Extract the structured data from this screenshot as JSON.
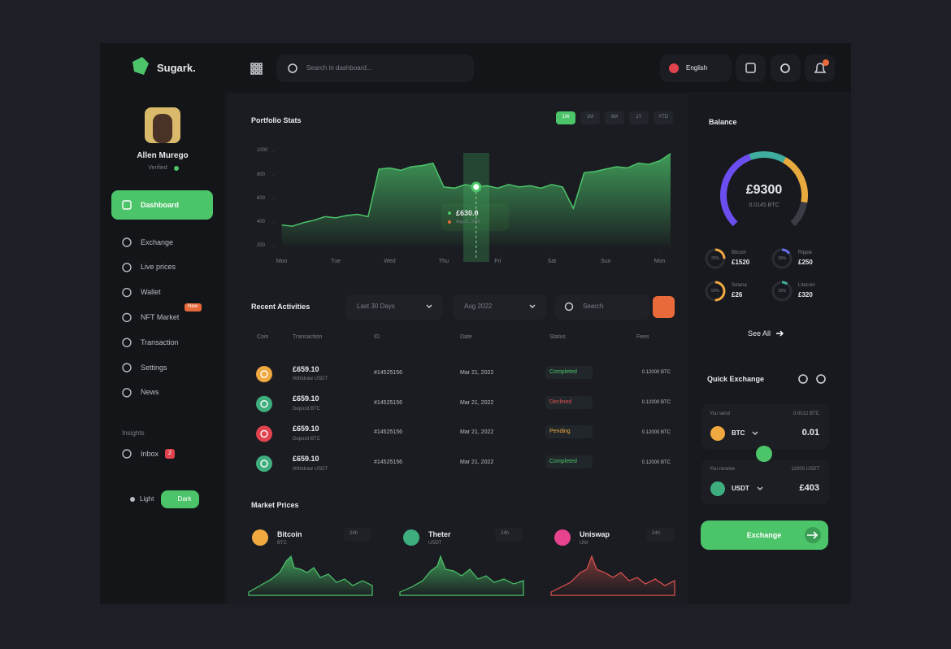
{
  "topbar": {
    "brand": "Sugark.",
    "search_placeholder": "Search in dashboard...",
    "language": "English"
  },
  "profile": {
    "name": "Allen Murego",
    "status": "Verified"
  },
  "sidebar": {
    "active": "Dashboard",
    "items": [
      "Exchange",
      "Live prices",
      "Wallet",
      "NFT Market",
      "Transaction",
      "Settings",
      "News"
    ],
    "badge": "New",
    "section": "Insights",
    "inbox": "Inbox",
    "inbox_count": "2",
    "theme_light": "Light",
    "theme_dark": "Dark"
  },
  "portfolio": {
    "title": "Portfolio Stats",
    "ranges": [
      "1W",
      "1M",
      "6M",
      "1Y",
      "YTD"
    ],
    "chart": {
      "type": "area",
      "color": "#4cc46a",
      "x": [
        0,
        0.2,
        0.4,
        0.6,
        0.8,
        1,
        1.2,
        1.4,
        1.6,
        1.8,
        2,
        2.2,
        2.4,
        2.6,
        2.8,
        3,
        3.2,
        3.4,
        3.6,
        3.8,
        4,
        4.2,
        4.4,
        4.6,
        4.8,
        5,
        5.2,
        5.4,
        5.6,
        5.8,
        6,
        6.2,
        6.4,
        6.6,
        6.8,
        7,
        7.2
      ],
      "values": [
        380,
        370,
        400,
        420,
        450,
        440,
        460,
        470,
        450,
        850,
        860,
        840,
        870,
        880,
        900,
        700,
        690,
        720,
        700,
        710,
        690,
        720,
        700,
        710,
        690,
        720,
        700,
        520,
        820,
        830,
        850,
        870,
        860,
        900,
        890,
        920,
        980
      ],
      "xlim": [
        -0.1,
        7.2
      ],
      "ylim": [
        200,
        1000
      ],
      "yticks": [
        1000,
        800,
        600,
        400,
        200
      ],
      "xticks": [
        {
          "value": 0,
          "label": "Mon"
        },
        {
          "value": 1,
          "label": "Tue"
        },
        {
          "value": 2,
          "label": "Wed"
        },
        {
          "value": 3,
          "label": "Thu"
        },
        {
          "value": 4,
          "label": "Fri"
        },
        {
          "value": 5,
          "label": "Sat"
        },
        {
          "value": 6,
          "label": "Sun"
        },
        {
          "value": 7,
          "label": "Mon"
        }
      ]
    },
    "tooltip": {
      "value": "£630.0",
      "date": "Aug 21, 2022"
    }
  },
  "activities": {
    "title": "Recent Activities",
    "filters": [
      "Last 30 Days",
      "Aug 2022"
    ],
    "search": "Search",
    "columns": [
      "Coin",
      "Transaction",
      "ID",
      "Date",
      "Status",
      "Fees"
    ],
    "rows": [
      {
        "coin_color": "#f0a940",
        "amount": "£659.10",
        "type": "Withdraw USDT",
        "id": "#14525156",
        "date": "Mar 21, 2022",
        "status": "Completed",
        "status_color": "#4cc46a",
        "fee": "0.12000 BTC"
      },
      {
        "coin_color": "#3fae7f",
        "amount": "£659.10",
        "type": "Deposit BTC",
        "id": "#14525156",
        "date": "Mar 21, 2022",
        "status": "Declined",
        "status_color": "#e0524f",
        "fee": "0.12000 BTC"
      },
      {
        "coin_color": "#e0434e",
        "amount": "£659.10",
        "type": "Deposit BTC",
        "id": "#14525156",
        "date": "Mar 21, 2022",
        "status": "Pending",
        "status_color": "#f0a940",
        "fee": "0.12000 BTC"
      },
      {
        "coin_color": "#3fae7f",
        "amount": "£659.10",
        "type": "Withdraw USDT",
        "id": "#14525156",
        "date": "Mar 21, 2022",
        "status": "Completed",
        "status_color": "#4cc46a",
        "fee": "0.12000 BTC"
      }
    ]
  },
  "market": {
    "title": "Market Prices",
    "coins": [
      {
        "name": "Bitcoin",
        "symbol": "BTC",
        "range": "24h",
        "color": "#f0a940"
      },
      {
        "name": "Theter",
        "symbol": "USDT",
        "range": "24h",
        "color": "#3fae7f"
      },
      {
        "name": "Uniswap",
        "symbol": "UNI",
        "range": "24h",
        "color": "#e8438e"
      }
    ]
  },
  "balance": {
    "title": "Balance",
    "amount": "£9300",
    "sub": "0.0145 BTC",
    "see_all": "See All",
    "assets": [
      {
        "name": "Bitcoin",
        "value": "£1520",
        "share": 25,
        "share_label": "25%",
        "color": "#f0a940"
      },
      {
        "name": "Ripple",
        "value": "£250",
        "share": 15,
        "share_label": "15%",
        "color": "#6c6cf0"
      },
      {
        "name": "Solana",
        "value": "£26",
        "share": 50,
        "share_label": "50%",
        "color": "#f0a940"
      },
      {
        "name": "Litecoin",
        "value": "£320",
        "share": 10,
        "share_label": "10%",
        "color": "#3fae9f"
      }
    ]
  },
  "exchange": {
    "title": "Quick Exchange",
    "button": "Exchange",
    "send": {
      "label": "You send",
      "balance": "0.0012 BTC",
      "coin": "BTC",
      "amount": "0.01",
      "color": "#f0a940"
    },
    "receive": {
      "label": "You receive",
      "balance": "12000 USDT",
      "coin": "USDT",
      "amount": "£403",
      "color": "#3fae7f"
    }
  }
}
